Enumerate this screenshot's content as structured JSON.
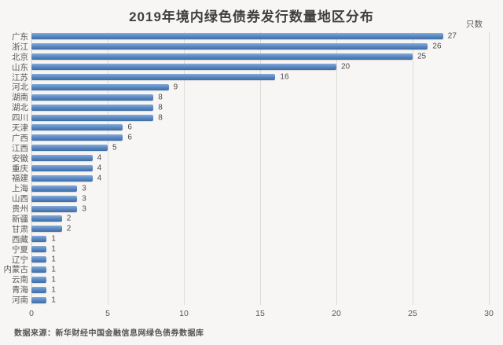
{
  "title": "2019年境内绿色债券发行数量地区分布",
  "unit_label": "只数",
  "source_note": "数据来源：新华财经中国金融信息网绿色债券数据库",
  "colors": {
    "background": "#f7f6f4",
    "bar": "#5988c3",
    "grid": "#dedcd8",
    "text": "#595959",
    "title": "#3f3f3f"
  },
  "chart_data": {
    "type": "bar",
    "orientation": "horizontal",
    "title": "2019年境内绿色债券发行数量地区分布",
    "xlabel": "",
    "ylabel": "只数",
    "categories": [
      "广东",
      "浙江",
      "北京",
      "山东",
      "江苏",
      "河北",
      "湖南",
      "湖北",
      "四川",
      "天津",
      "广西",
      "江西",
      "安徽",
      "重庆",
      "福建",
      "上海",
      "山西",
      "贵州",
      "新疆",
      "甘肃",
      "西藏",
      "宁夏",
      "辽宁",
      "内蒙古",
      "云南",
      "青海",
      "河南"
    ],
    "values": [
      27,
      26,
      25,
      20,
      16,
      9,
      8,
      8,
      8,
      6,
      6,
      5,
      4,
      4,
      4,
      3,
      3,
      3,
      2,
      2,
      1,
      1,
      1,
      1,
      1,
      1,
      1
    ],
    "xlim": [
      0,
      30
    ],
    "xticks": [
      0,
      5,
      10,
      15,
      20,
      25,
      30
    ],
    "grid": "vertical",
    "legend": "none",
    "data_labels": true
  }
}
